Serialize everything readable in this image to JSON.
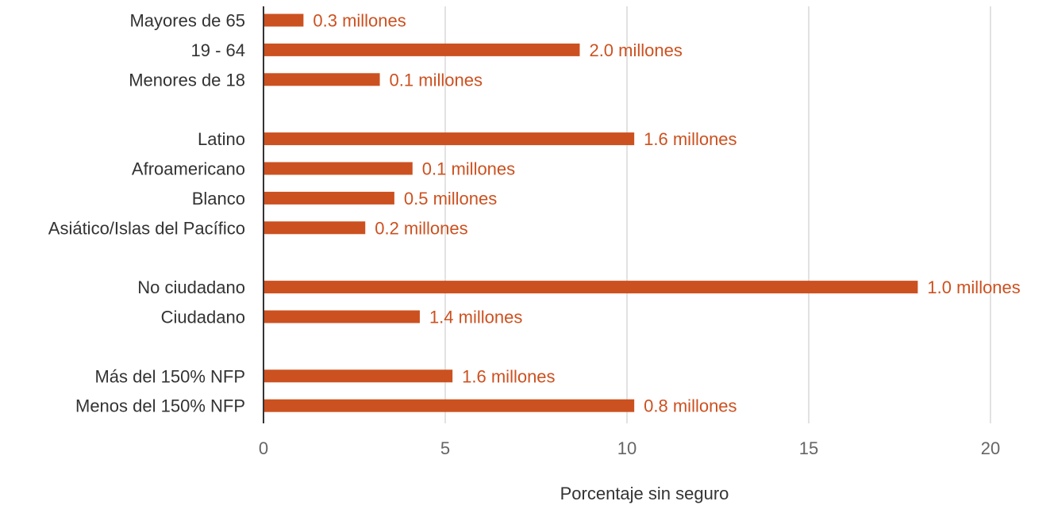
{
  "chart_data": {
    "type": "bar",
    "orientation": "horizontal",
    "categories": [
      "Mayores de 65",
      "19 - 64",
      "Menores de 18",
      "Latino",
      "Afroamericano",
      "Blanco",
      "Asiático/Islas del Pacífico",
      "No ciudadano",
      "Ciudadano",
      "Más del 150% NFP",
      "Menos del 150% NFP"
    ],
    "groups": [
      [
        0,
        1,
        2
      ],
      [
        3,
        4,
        5,
        6
      ],
      [
        7,
        8
      ],
      [
        9,
        10
      ]
    ],
    "values": [
      1.1,
      8.7,
      3.2,
      10.2,
      4.1,
      3.6,
      2.8,
      18.0,
      4.3,
      5.2,
      10.2
    ],
    "data_labels": [
      "0.3 millones",
      "2.0 millones",
      "0.1 millones",
      "1.6 millones",
      "0.1 millones",
      "0.5 millones",
      "0.2 millones",
      "1.0 millones",
      "1.4 millones",
      "1.6 millones",
      "0.8 millones"
    ],
    "xlabel": "Porcentaje sin seguro",
    "ylabel": "",
    "xlim": [
      0,
      20
    ],
    "xticks": [
      0,
      5,
      10,
      15,
      20
    ],
    "grid": true,
    "legend": "none",
    "bar_color": "#cc5120",
    "label_color": "#cc5120"
  }
}
